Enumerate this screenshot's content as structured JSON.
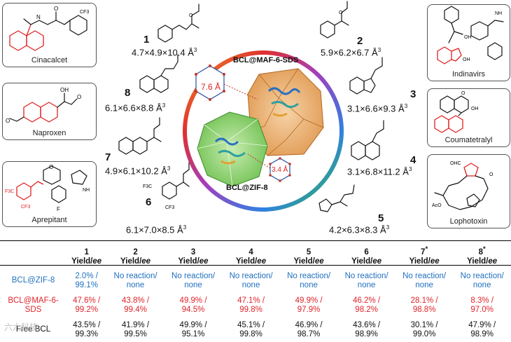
{
  "drugs": [
    {
      "name": "Cinacalcet"
    },
    {
      "name": "Naproxen"
    },
    {
      "name": "Aprepitant"
    },
    {
      "name": "Indinavirs"
    },
    {
      "name": "Coumatetralyl"
    },
    {
      "name": "Lophotoxin"
    }
  ],
  "compounds": [
    {
      "num": "1",
      "dims": "4.7×4.9×10.4 Å",
      "exp": "3"
    },
    {
      "num": "2",
      "dims": "5.9×6.2×6.7 Å",
      "exp": "3"
    },
    {
      "num": "3",
      "dims": "3.1×6.6×9.3 Å",
      "exp": "3"
    },
    {
      "num": "4",
      "dims": "3.1×6.8×11.2 Å",
      "exp": "3"
    },
    {
      "num": "5",
      "dims": "4.2×6.3×8.3 Å",
      "exp": "3"
    },
    {
      "num": "6",
      "dims": "6.1×7.0×8.5 Å",
      "exp": "3"
    },
    {
      "num": "7",
      "dims": "4.9×6.1×10.2 Å",
      "exp": "3"
    },
    {
      "num": "8",
      "dims": "6.1×6.6×8.8 Å",
      "exp": "3"
    }
  ],
  "center": {
    "maf_label": "BCL@MAF-6-SDS",
    "zif_label": "BCL@ZIF-8",
    "maf_pore": "7.6 Å",
    "zif_pore": "3.4 Å"
  },
  "atoms": {
    "cf3": "CF3",
    "f3c": "F3C",
    "f": "F",
    "oh": "OH",
    "cho": "OHC",
    "aco": "AcO",
    "o": "O",
    "n": "N",
    "h": "H",
    "nh": "NH"
  },
  "table": {
    "headers": [
      {
        "num": "1",
        "star": "",
        "sub": "Yield/",
        "ee": "ee"
      },
      {
        "num": "2",
        "star": "",
        "sub": "Yield/",
        "ee": "ee"
      },
      {
        "num": "3",
        "star": "",
        "sub": "Yield/",
        "ee": "ee"
      },
      {
        "num": "4",
        "star": "",
        "sub": "Yield/",
        "ee": "ee"
      },
      {
        "num": "5",
        "star": "",
        "sub": "Yield/",
        "ee": "ee"
      },
      {
        "num": "6",
        "star": "",
        "sub": "Yield/",
        "ee": "ee"
      },
      {
        "num": "7",
        "star": "*",
        "sub": "Yield/",
        "ee": "ee"
      },
      {
        "num": "8",
        "star": "*",
        "sub": "Yield/",
        "ee": "ee"
      }
    ],
    "rows": [
      {
        "label": "BCL@ZIF-8",
        "color": "#1f6fbf",
        "cells": [
          [
            "2.0% /",
            "99.1%"
          ],
          [
            "No reaction/",
            "none"
          ],
          [
            "No reaction/",
            "none"
          ],
          [
            "No reaction/",
            "none"
          ],
          [
            "No reaction/",
            "none"
          ],
          [
            "No reaction/",
            "none"
          ],
          [
            "No reaction/",
            "none"
          ],
          [
            "No reaction/",
            "none"
          ]
        ]
      },
      {
        "label": "BCL@MAF-6-SDS",
        "color": "#e0242b",
        "cells": [
          [
            "47.6% /",
            "99.2%"
          ],
          [
            "43.8% /",
            "99.4%"
          ],
          [
            "49.9% /",
            "94.5%"
          ],
          [
            "47.1% /",
            "99.8%"
          ],
          [
            "49.9% /",
            "97.9%"
          ],
          [
            "46.2% /",
            "98.2%"
          ],
          [
            "28.1% /",
            "98.8%"
          ],
          [
            "8.3% /",
            "97.0%"
          ]
        ]
      },
      {
        "label": "Free BCL",
        "color": "#111111",
        "cells": [
          [
            "43.5% /",
            "99.3%"
          ],
          [
            "41.9% /",
            "99.5%"
          ],
          [
            "49.9% /",
            "95.1%"
          ],
          [
            "45.1% /",
            "99.8%"
          ],
          [
            "46.9% /",
            "98.7%"
          ],
          [
            "43.6% /",
            "98.9%"
          ],
          [
            "30.1% /",
            "99.0%"
          ],
          [
            "47.9% /",
            "98.9%"
          ]
        ]
      }
    ]
  },
  "watermark": "六六科技"
}
